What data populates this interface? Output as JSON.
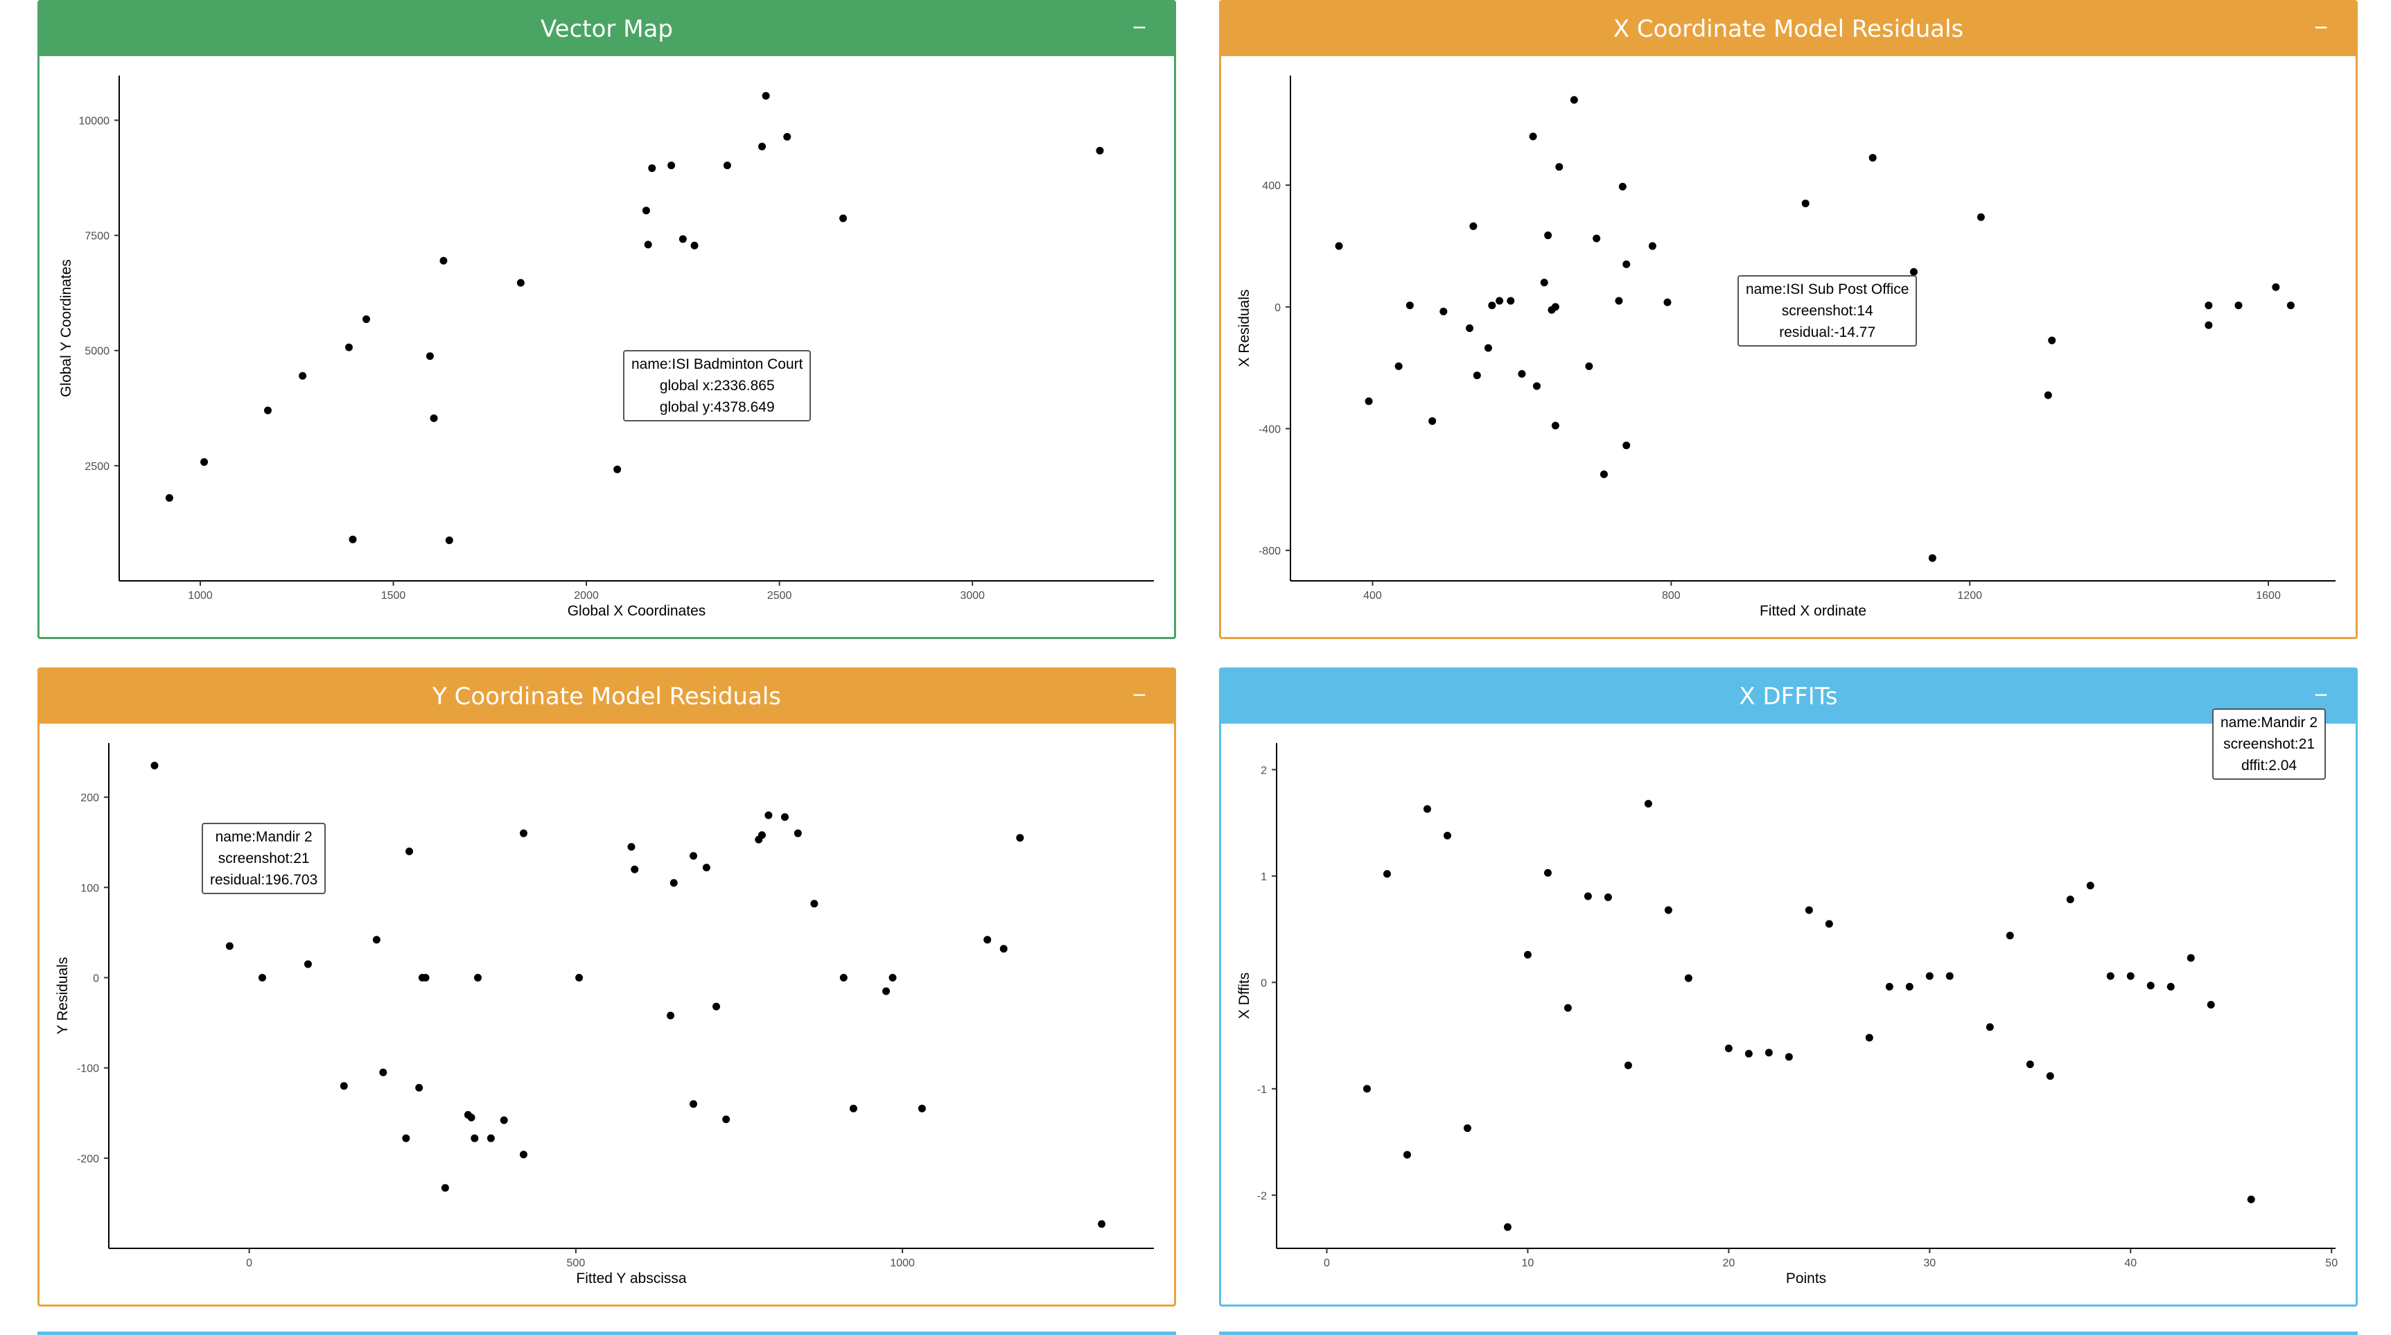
{
  "colors": {
    "green": "#4aa564",
    "orange": "#e8a23d",
    "blue": "#5bbde8"
  },
  "panels": {
    "vector_map": {
      "title": "Vector Map",
      "collapse": "−",
      "color": "green"
    },
    "x_resid": {
      "title": "X Coordinate Model Residuals",
      "collapse": "−",
      "color": "orange"
    },
    "y_resid": {
      "title": "Y Coordinate Model Residuals",
      "collapse": "−",
      "color": "orange"
    },
    "x_dffits": {
      "title": "X DFFITs",
      "collapse": "−",
      "color": "blue"
    }
  },
  "tooltips": {
    "vector_map": [
      "name:ISI Badminton Court",
      "global x:2336.865",
      "global y:4378.649"
    ],
    "x_resid": [
      "name:ISI Sub Post Office",
      "screenshot:14",
      "residual:-14.77"
    ],
    "y_resid": [
      "name:Mandir 2",
      "screenshot:21",
      "residual:196.703"
    ],
    "x_dffits": [
      "name:Mandir 2",
      "screenshot:21",
      "dffit:2.04"
    ]
  },
  "chart_data": [
    {
      "id": "vector_map",
      "type": "scatter",
      "xlabel": "Global X Coordinates",
      "ylabel": "Global Y Coordinates",
      "xlim": [
        790,
        3470
      ],
      "ylim": [
        0,
        10970
      ],
      "xticks": [
        1000,
        1500,
        2000,
        2500,
        3000
      ],
      "yticks": [
        2500,
        5000,
        7500,
        10000
      ],
      "points": [
        [
          920,
          1800
        ],
        [
          1010,
          2580
        ],
        [
          1175,
          3700
        ],
        [
          1265,
          4450
        ],
        [
          1385,
          5070
        ],
        [
          1430,
          5680
        ],
        [
          1395,
          900
        ],
        [
          1630,
          6950
        ],
        [
          1595,
          4880
        ],
        [
          1605,
          3530
        ],
        [
          1645,
          880
        ],
        [
          1830,
          6470
        ],
        [
          2080,
          2420
        ],
        [
          2155,
          8040
        ],
        [
          2160,
          7300
        ],
        [
          2170,
          8960
        ],
        [
          2220,
          9020
        ],
        [
          2250,
          7420
        ],
        [
          2280,
          7280
        ],
        [
          2365,
          9020
        ],
        [
          2455,
          9430
        ],
        [
          2465,
          10530
        ],
        [
          2520,
          9640
        ],
        [
          2665,
          7870
        ],
        [
          3330,
          9340
        ]
      ]
    },
    {
      "id": "x_resid",
      "type": "scatter",
      "xlabel": "Fitted X ordinate",
      "ylabel": "X Residuals",
      "xlim": [
        290,
        1690
      ],
      "ylim": [
        -900,
        760
      ],
      "xticks": [
        400,
        800,
        1200,
        1600
      ],
      "yticks": [
        -800,
        -400,
        0,
        400
      ],
      "points": [
        [
          355,
          200
        ],
        [
          395,
          -310
        ],
        [
          435,
          -195
        ],
        [
          450,
          5
        ],
        [
          480,
          -375
        ],
        [
          495,
          -15
        ],
        [
          530,
          -70
        ],
        [
          535,
          265
        ],
        [
          540,
          -225
        ],
        [
          555,
          -135
        ],
        [
          560,
          5
        ],
        [
          570,
          20
        ],
        [
          585,
          20
        ],
        [
          600,
          -220
        ],
        [
          615,
          560
        ],
        [
          620,
          -260
        ],
        [
          630,
          80
        ],
        [
          635,
          235
        ],
        [
          640,
          -10
        ],
        [
          645,
          0
        ],
        [
          645,
          -390
        ],
        [
          650,
          460
        ],
        [
          670,
          680
        ],
        [
          690,
          -195
        ],
        [
          700,
          225
        ],
        [
          710,
          -550
        ],
        [
          730,
          20
        ],
        [
          735,
          395
        ],
        [
          740,
          140
        ],
        [
          740,
          -455
        ],
        [
          775,
          200
        ],
        [
          795,
          15
        ],
        [
          900,
          -5
        ],
        [
          915,
          -10
        ],
        [
          980,
          340
        ],
        [
          1070,
          490
        ],
        [
          1125,
          115
        ],
        [
          1150,
          -825
        ],
        [
          1215,
          295
        ],
        [
          1305,
          -290
        ],
        [
          1310,
          -110
        ],
        [
          1520,
          5
        ],
        [
          1520,
          -60
        ],
        [
          1560,
          5
        ],
        [
          1610,
          65
        ],
        [
          1630,
          5
        ]
      ]
    },
    {
      "id": "y_resid",
      "type": "scatter",
      "xlabel": "Fitted Y abscissa",
      "ylabel": "Y Residuals",
      "xlim": [
        -215,
        1385
      ],
      "ylim": [
        -300,
        260
      ],
      "xticks": [
        0,
        500,
        1000
      ],
      "yticks": [
        -200,
        -100,
        0,
        100,
        200
      ],
      "points": [
        [
          -145,
          235
        ],
        [
          -30,
          35
        ],
        [
          20,
          0
        ],
        [
          30,
          145
        ],
        [
          90,
          15
        ],
        [
          145,
          -120
        ],
        [
          195,
          42
        ],
        [
          205,
          -105
        ],
        [
          240,
          -178
        ],
        [
          245,
          140
        ],
        [
          260,
          -122
        ],
        [
          265,
          0
        ],
        [
          270,
          0
        ],
        [
          300,
          -233
        ],
        [
          335,
          -152
        ],
        [
          340,
          -155
        ],
        [
          345,
          -178
        ],
        [
          350,
          0
        ],
        [
          370,
          -178
        ],
        [
          390,
          -158
        ],
        [
          420,
          -196
        ],
        [
          420,
          160
        ],
        [
          505,
          0
        ],
        [
          585,
          145
        ],
        [
          590,
          120
        ],
        [
          645,
          -42
        ],
        [
          650,
          105
        ],
        [
          680,
          -140
        ],
        [
          680,
          135
        ],
        [
          700,
          122
        ],
        [
          715,
          -32
        ],
        [
          730,
          -157
        ],
        [
          780,
          153
        ],
        [
          785,
          158
        ],
        [
          795,
          180
        ],
        [
          820,
          178
        ],
        [
          840,
          160
        ],
        [
          865,
          82
        ],
        [
          910,
          0
        ],
        [
          925,
          -145
        ],
        [
          975,
          -15
        ],
        [
          985,
          0
        ],
        [
          1030,
          -145
        ],
        [
          1130,
          42
        ],
        [
          1155,
          32
        ],
        [
          1180,
          155
        ],
        [
          1305,
          -273
        ]
      ]
    },
    {
      "id": "x_dffits",
      "type": "scatter",
      "xlabel": "Points",
      "ylabel": "X Dffits",
      "xlim": [
        -2.5,
        50.2
      ],
      "ylim": [
        -2.5,
        2.25
      ],
      "xticks": [
        0,
        10,
        20,
        30,
        40,
        50
      ],
      "yticks": [
        -2,
        -1,
        0,
        1,
        2
      ],
      "points": [
        [
          2,
          -1
        ],
        [
          3,
          1.02
        ],
        [
          4,
          -1.62
        ],
        [
          5,
          1.63
        ],
        [
          6,
          1.38
        ],
        [
          7,
          -1.37
        ],
        [
          9,
          -2.3
        ],
        [
          10,
          0.26
        ],
        [
          11,
          1.03
        ],
        [
          12,
          -0.24
        ],
        [
          13,
          0.81
        ],
        [
          14,
          0.8
        ],
        [
          15,
          -0.78
        ],
        [
          16,
          1.68
        ],
        [
          17,
          0.68
        ],
        [
          18,
          0.04
        ],
        [
          20,
          -0.62
        ],
        [
          21,
          -0.67
        ],
        [
          22,
          -0.66
        ],
        [
          23,
          -0.7
        ],
        [
          24,
          0.68
        ],
        [
          25,
          0.55
        ],
        [
          27,
          -0.52
        ],
        [
          28,
          -0.04
        ],
        [
          29,
          -0.04
        ],
        [
          30,
          0.06
        ],
        [
          31,
          0.06
        ],
        [
          33,
          -0.42
        ],
        [
          34,
          0.44
        ],
        [
          35,
          -0.77
        ],
        [
          36,
          -0.88
        ],
        [
          37,
          0.78
        ],
        [
          38,
          0.91
        ],
        [
          39,
          0.06
        ],
        [
          40,
          0.06
        ],
        [
          41,
          -0.03
        ],
        [
          42,
          -0.04
        ],
        [
          43,
          0.23
        ],
        [
          44,
          -0.21
        ],
        [
          46,
          -2.04
        ]
      ]
    }
  ]
}
